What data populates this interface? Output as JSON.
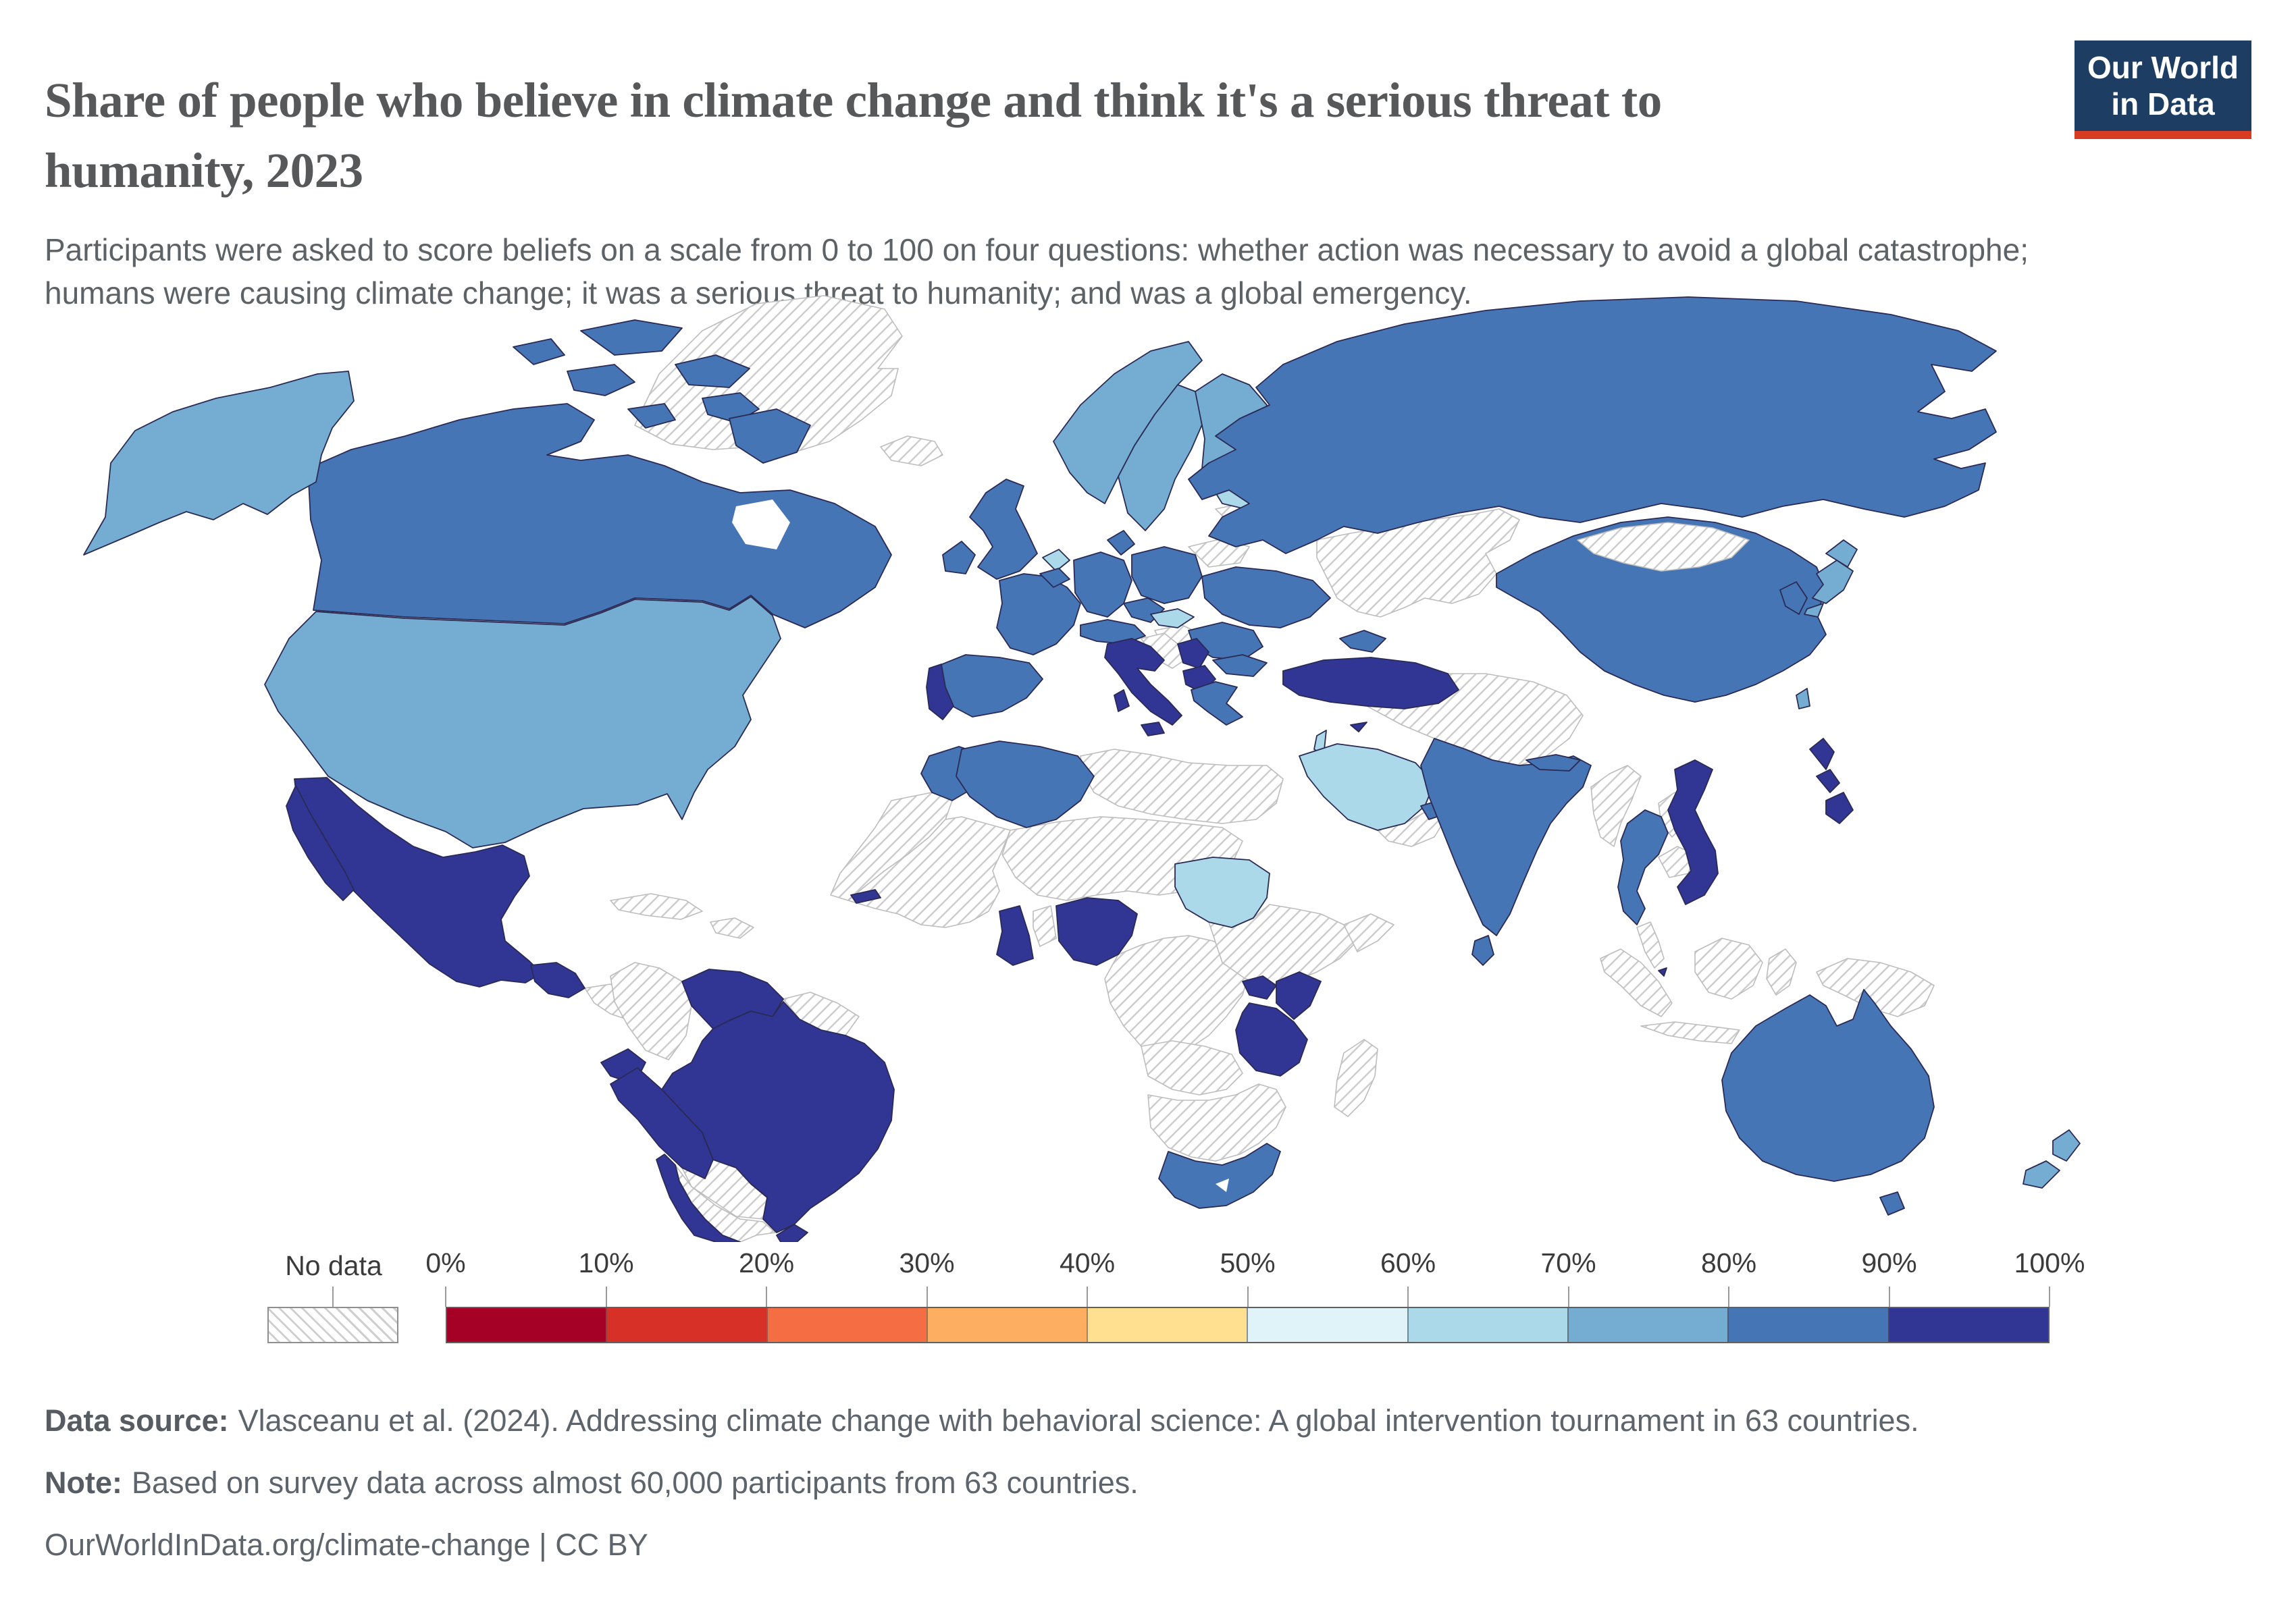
{
  "header": {
    "title": "Share of people who believe in climate change and think it's a serious threat to humanity, 2023",
    "subtitle": "Participants were asked to score beliefs on a scale from 0 to 100 on four questions: whether action was necessary to avoid a global catastrophe; humans were causing climate change; it was a serious threat to humanity; and was a global emergency.",
    "logo_line1": "Our World",
    "logo_line2": "in Data",
    "logo_bg": "#1d3d63",
    "logo_accent": "#d73c22"
  },
  "chart_data": {
    "type": "choropleth",
    "title": "Share of people who believe in climate change and think it's a serious threat to humanity, 2023",
    "year": "2023",
    "unit": "%",
    "legend": {
      "no_data_label": "No data",
      "tick_labels": [
        "0%",
        "10%",
        "20%",
        "30%",
        "40%",
        "50%",
        "60%",
        "70%",
        "80%",
        "90%",
        "100%"
      ],
      "bins": [
        {
          "range": "0-10%",
          "color": "#a50026"
        },
        {
          "range": "10-20%",
          "color": "#d73027"
        },
        {
          "range": "20-30%",
          "color": "#f46d43"
        },
        {
          "range": "30-40%",
          "color": "#fdae61"
        },
        {
          "range": "40-50%",
          "color": "#fee090"
        },
        {
          "range": "50-60%",
          "color": "#e0f3f8"
        },
        {
          "range": "60-70%",
          "color": "#abd9e9"
        },
        {
          "range": "70-80%",
          "color": "#74add1"
        },
        {
          "range": "80-90%",
          "color": "#4575b4"
        },
        {
          "range": "90-100%",
          "color": "#313695"
        }
      ]
    },
    "countries": [
      {
        "name": "United States",
        "bin": "70-80%"
      },
      {
        "name": "Canada",
        "bin": "80-90%"
      },
      {
        "name": "Mexico",
        "bin": "90-100%"
      },
      {
        "name": "Guatemala",
        "bin": "90-100%"
      },
      {
        "name": "Venezuela",
        "bin": "90-100%"
      },
      {
        "name": "Ecuador",
        "bin": "90-100%"
      },
      {
        "name": "Peru",
        "bin": "90-100%"
      },
      {
        "name": "Chile",
        "bin": "90-100%"
      },
      {
        "name": "Brazil",
        "bin": "90-100%"
      },
      {
        "name": "Uruguay",
        "bin": "90-100%"
      },
      {
        "name": "United Kingdom",
        "bin": "80-90%"
      },
      {
        "name": "Ireland",
        "bin": "80-90%"
      },
      {
        "name": "France",
        "bin": "80-90%"
      },
      {
        "name": "Spain",
        "bin": "80-90%"
      },
      {
        "name": "Portugal",
        "bin": "90-100%"
      },
      {
        "name": "Belgium",
        "bin": "80-90%"
      },
      {
        "name": "Netherlands",
        "bin": "60-70%"
      },
      {
        "name": "Germany",
        "bin": "80-90%"
      },
      {
        "name": "Denmark",
        "bin": "80-90%"
      },
      {
        "name": "Norway",
        "bin": "70-80%"
      },
      {
        "name": "Sweden",
        "bin": "70-80%"
      },
      {
        "name": "Finland",
        "bin": "70-80%"
      },
      {
        "name": "Latvia",
        "bin": "60-70%"
      },
      {
        "name": "Poland",
        "bin": "80-90%"
      },
      {
        "name": "Czechia",
        "bin": "80-90%"
      },
      {
        "name": "Slovakia",
        "bin": "60-70%"
      },
      {
        "name": "Austria",
        "bin": "80-90%"
      },
      {
        "name": "Switzerland",
        "bin": "80-90%"
      },
      {
        "name": "Italy",
        "bin": "90-100%"
      },
      {
        "name": "Serbia",
        "bin": "90-100%"
      },
      {
        "name": "Albania",
        "bin": "90-100%"
      },
      {
        "name": "North Macedonia",
        "bin": "90-100%"
      },
      {
        "name": "Greece",
        "bin": "80-90%"
      },
      {
        "name": "Romania",
        "bin": "80-90%"
      },
      {
        "name": "Bulgaria",
        "bin": "80-90%"
      },
      {
        "name": "Ukraine",
        "bin": "80-90%"
      },
      {
        "name": "Russia",
        "bin": "80-90%"
      },
      {
        "name": "Turkey",
        "bin": "90-100%"
      },
      {
        "name": "Cyprus",
        "bin": "90-100%"
      },
      {
        "name": "Georgia",
        "bin": "80-90%"
      },
      {
        "name": "Israel",
        "bin": "60-70%"
      },
      {
        "name": "Saudi Arabia",
        "bin": "60-70%"
      },
      {
        "name": "United Arab Emirates",
        "bin": "80-90%"
      },
      {
        "name": "Morocco",
        "bin": "80-90%"
      },
      {
        "name": "Algeria",
        "bin": "80-90%"
      },
      {
        "name": "Sudan",
        "bin": "60-70%"
      },
      {
        "name": "Gambia",
        "bin": "90-100%"
      },
      {
        "name": "Ghana",
        "bin": "90-100%"
      },
      {
        "name": "Nigeria",
        "bin": "90-100%"
      },
      {
        "name": "Uganda",
        "bin": "90-100%"
      },
      {
        "name": "Kenya",
        "bin": "90-100%"
      },
      {
        "name": "Tanzania",
        "bin": "90-100%"
      },
      {
        "name": "South Africa",
        "bin": "80-90%"
      },
      {
        "name": "India",
        "bin": "80-90%"
      },
      {
        "name": "Nepal",
        "bin": "80-90%"
      },
      {
        "name": "Sri Lanka",
        "bin": "80-90%"
      },
      {
        "name": "China",
        "bin": "80-90%"
      },
      {
        "name": "South Korea",
        "bin": "80-90%"
      },
      {
        "name": "Japan",
        "bin": "70-80%"
      },
      {
        "name": "Taiwan",
        "bin": "70-80%"
      },
      {
        "name": "Thailand",
        "bin": "80-90%"
      },
      {
        "name": "Vietnam",
        "bin": "90-100%"
      },
      {
        "name": "Philippines",
        "bin": "90-100%"
      },
      {
        "name": "Singapore",
        "bin": "90-100%"
      },
      {
        "name": "Australia",
        "bin": "80-90%"
      },
      {
        "name": "New Zealand",
        "bin": "70-80%"
      }
    ]
  },
  "footer": {
    "source_label": "Data source:",
    "source_text": "Vlasceanu et al. (2024). Addressing climate change with behavioral science: A global intervention tournament in 63 countries.",
    "note_label": "Note:",
    "note_text": "Based on survey data across almost 60,000 participants from 63 countries.",
    "citation": "OurWorldInData.org/climate-change | CC BY"
  }
}
